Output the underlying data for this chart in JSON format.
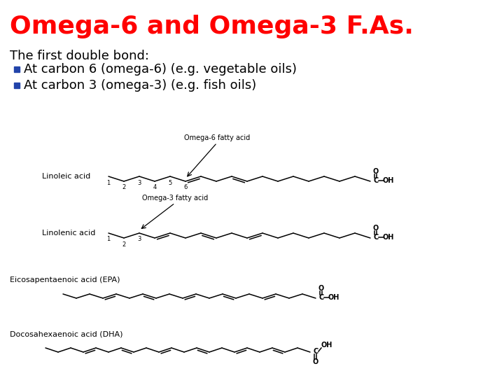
{
  "title": "Omega-6 and Omega-3 F.As.",
  "title_color": "#FF0000",
  "title_fontsize": 26,
  "background_color": "#FFFFFF",
  "text_color": "#000000",
  "bullet_color": "#2244AA",
  "body_text": "The first double bond:",
  "bullet1": "At carbon 6 (omega-6) (e.g. vegetable oils)",
  "bullet2": "At carbon 3 (omega-3) (e.g. fish oils)",
  "body_fontsize": 13,
  "label_fontsize": 8,
  "mol_fontsize": 7,
  "num_fontsize": 6
}
